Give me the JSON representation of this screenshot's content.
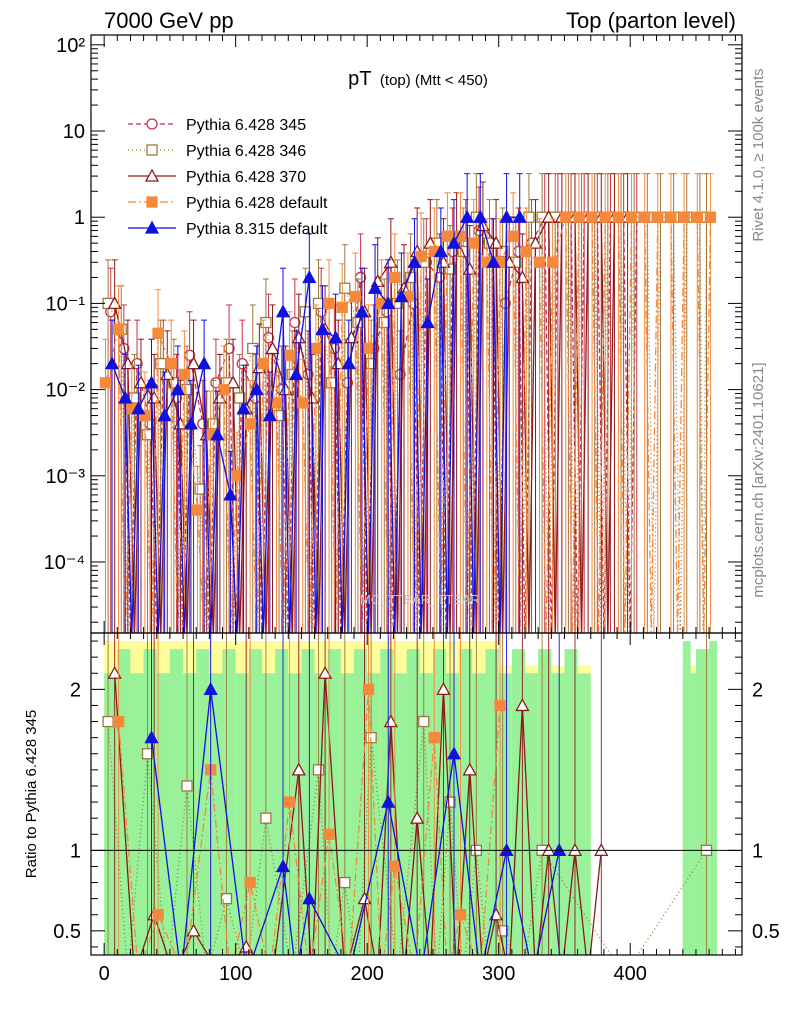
{
  "header": {
    "left": "7000 GeV pp",
    "right": "Top (parton level)"
  },
  "plot_title": {
    "main": "pT",
    "sub": "(top) (Mtt < 450)"
  },
  "side_labels": {
    "rivet": "Rivet 4.1.0, ≥ 100k events",
    "mcplots": "mcplots.cern.ch [arXiv:2401.10621]"
  },
  "watermark": "MC_TTBAR_TTBAR",
  "colors": {
    "band_green": "#99f199",
    "band_yellow": "#fdfd9a",
    "pythia6_345": "#c8324a",
    "pythia6_346": "#9a7a3a",
    "pythia6_370": "#8b1a1a",
    "pythia6_default": "#f5883a",
    "pythia8": "#1010e0"
  },
  "chart_data": [
    {
      "type": "line",
      "panel": "main",
      "yscale": "log",
      "xlim": [
        -10,
        485
      ],
      "ylim": [
        1.5e-05,
        130
      ],
      "x_ticks": [
        0,
        100,
        200,
        300,
        400
      ],
      "y_ticks": [
        {
          "value": 0.0001,
          "label": "10⁻⁴"
        },
        {
          "value": 0.001,
          "label": "10⁻³"
        },
        {
          "value": 0.01,
          "label": "10⁻²"
        },
        {
          "value": 0.1,
          "label": "10⁻¹"
        },
        {
          "value": 1,
          "label": "1"
        },
        {
          "value": 10,
          "label": "10"
        },
        {
          "value": 100,
          "label": "10²"
        }
      ],
      "series": [
        {
          "name": "Pythia 6.428 345",
          "color": "#c8324a",
          "dash": "5,3",
          "marker": "circle-open",
          "x": [
            5,
            15,
            25,
            35,
            45,
            55,
            65,
            75,
            85,
            95,
            105,
            115,
            125,
            135,
            145,
            155,
            165,
            175,
            185,
            195,
            205,
            215,
            225,
            235,
            245,
            255,
            265,
            275,
            285,
            295,
            305,
            315,
            325,
            335,
            345,
            355,
            365,
            375,
            385,
            395,
            405
          ],
          "y": [
            0.08,
            0.03,
            0.02,
            0.004,
            0.02,
            0.008,
            0.025,
            0.004,
            0.012,
            0.03,
            0.02,
            0.008,
            0.04,
            0.01,
            0.06,
            0.015,
            0.08,
            0.03,
            0.012,
            0.2,
            0.03,
            0.08,
            0.015,
            0.1,
            0.3,
            0.2,
            0.4,
            0.5,
            0.7,
            0.3,
            0.1,
            0.4,
            0.5,
            1.0,
            1.0,
            1.0,
            1.0,
            1.0,
            1.0,
            1.0,
            1.0
          ]
        },
        {
          "name": "Pythia 6.428 346",
          "color": "#9a7a3a",
          "dash": "1,3",
          "marker": "square-open",
          "x": [
            3,
            13,
            23,
            33,
            43,
            53,
            63,
            73,
            83,
            93,
            103,
            113,
            123,
            133,
            143,
            153,
            163,
            173,
            183,
            193,
            203,
            213,
            223,
            233,
            243,
            253,
            263,
            273,
            283,
            293,
            303,
            313,
            323,
            333,
            343,
            353,
            363,
            373,
            383,
            393,
            403,
            413,
            423,
            433,
            443,
            453,
            458
          ],
          "y": [
            0.1,
            0.05,
            0.008,
            0.003,
            0.02,
            0.012,
            0.01,
            0.0007,
            0.004,
            0.012,
            0.008,
            0.03,
            0.06,
            0.005,
            0.015,
            0.08,
            0.1,
            0.012,
            0.15,
            0.06,
            0.02,
            0.06,
            0.1,
            0.2,
            0.3,
            0.5,
            0.25,
            0.4,
            1.0,
            0.5,
            0.4,
            0.3,
            1.0,
            1.0,
            1.0,
            1.0,
            1.0,
            1.0,
            1.0,
            1.0,
            1.0,
            1.0,
            1.0,
            1.0,
            1.0,
            1.0,
            1.0
          ]
        },
        {
          "name": "Pythia 6.428 370",
          "color": "#8b1a1a",
          "dash": "",
          "marker": "triangle-open",
          "x": [
            8,
            18,
            28,
            38,
            48,
            58,
            68,
            78,
            88,
            98,
            108,
            118,
            128,
            138,
            148,
            158,
            168,
            178,
            188,
            198,
            208,
            218,
            228,
            238,
            248,
            258,
            268,
            278,
            288,
            298,
            308,
            318,
            328,
            338,
            348,
            358,
            368,
            378,
            388,
            398
          ],
          "y": [
            0.1,
            0.02,
            0.012,
            0.008,
            0.015,
            0.004,
            0.02,
            0.003,
            0.008,
            0.012,
            0.006,
            0.018,
            0.03,
            0.01,
            0.04,
            0.008,
            0.05,
            0.02,
            0.04,
            0.08,
            0.18,
            0.3,
            0.15,
            0.4,
            0.5,
            0.3,
            0.6,
            0.25,
            0.8,
            0.5,
            0.3,
            0.2,
            0.5,
            1.0,
            1.0,
            1.0,
            1.0,
            1.0,
            1.0,
            1.0
          ]
        },
        {
          "name": "Pythia 6.428 default",
          "color": "#f5883a",
          "dash": "8,3,2,3",
          "marker": "square-filled",
          "x": [
            1,
            11,
            21,
            31,
            41,
            51,
            61,
            71,
            81,
            91,
            101,
            111,
            121,
            131,
            141,
            151,
            161,
            171,
            181,
            191,
            201,
            211,
            221,
            231,
            241,
            251,
            261,
            271,
            281,
            291,
            301,
            311,
            321,
            331,
            341,
            351,
            361,
            371,
            381,
            391,
            401,
            411,
            421,
            431,
            441,
            451,
            461
          ],
          "y": [
            0.012,
            0.05,
            0.006,
            0.005,
            0.045,
            0.02,
            0.015,
            0.0004,
            0.003,
            0.01,
            0.001,
            0.004,
            0.02,
            0.007,
            0.025,
            0.007,
            0.03,
            0.1,
            0.09,
            0.12,
            0.03,
            0.1,
            0.2,
            0.12,
            0.35,
            0.4,
            0.6,
            0.6,
            0.5,
            0.3,
            0.3,
            0.6,
            0.4,
            0.3,
            0.3,
            1.0,
            1.0,
            1.0,
            1.0,
            1.0,
            1.0,
            1.0,
            1.0,
            1.0,
            1.0,
            1.0,
            1.0
          ]
        },
        {
          "name": "Pythia 8.315 default",
          "color": "#1010e0",
          "dash": "",
          "marker": "triangle-filled",
          "x": [
            6,
            16,
            26,
            36,
            46,
            56,
            66,
            76,
            86,
            96,
            106,
            116,
            126,
            136,
            146,
            156,
            166,
            176,
            186,
            196,
            206,
            216,
            226,
            236,
            246,
            256,
            266,
            276,
            286,
            296,
            306,
            316
          ],
          "y": [
            0.02,
            0.008,
            0.006,
            0.012,
            0.005,
            0.01,
            0.004,
            0.02,
            0.003,
            0.0006,
            0.006,
            0.01,
            0.005,
            0.08,
            0.015,
            0.2,
            0.05,
            0.04,
            0.02,
            0.08,
            0.15,
            0.1,
            0.12,
            0.3,
            0.06,
            0.4,
            0.5,
            1.0,
            1.0,
            0.3,
            1.0,
            1.0
          ]
        }
      ]
    },
    {
      "type": "line",
      "panel": "ratio",
      "ylabel": "Ratio to Pythia 6.428 345",
      "xlim": [
        -10,
        485
      ],
      "ylim": [
        0.35,
        2.35
      ],
      "x_ticks": [
        0,
        100,
        200,
        300,
        400
      ],
      "y_ticks": [
        0.5,
        1,
        2
      ],
      "reference_line": 1,
      "series": [
        {
          "name": "Pythia 6.428 346",
          "color": "#9a7a3a",
          "dash": "1,3",
          "marker": "square-open",
          "x": [
            3,
            33,
            63,
            93,
            123,
            163,
            183,
            203,
            243,
            263,
            283,
            303,
            333,
            458
          ],
          "y": [
            1.8,
            1.6,
            1.4,
            0.7,
            1.2,
            1.5,
            0.8,
            1.7,
            1.8,
            1.3,
            1.0,
            0.5,
            1.0,
            1.0
          ]
        },
        {
          "name": "Pythia 6.428 370",
          "color": "#8b1a1a",
          "dash": "",
          "marker": "triangle-open",
          "x": [
            8,
            38,
            68,
            108,
            148,
            168,
            198,
            218,
            238,
            258,
            278,
            298,
            318,
            338,
            358,
            378
          ],
          "y": [
            2.1,
            0.6,
            0.5,
            0.4,
            1.5,
            2.1,
            0.7,
            1.8,
            1.2,
            2.0,
            1.5,
            0.6,
            1.9,
            1.0,
            1.0,
            1.0
          ]
        },
        {
          "name": "Pythia 6.428 default",
          "color": "#f5883a",
          "dash": "8,3,2,3",
          "marker": "square-filled",
          "x": [
            11,
            41,
            81,
            111,
            141,
            171,
            201,
            221,
            251,
            271,
            301
          ],
          "y": [
            1.8,
            0.6,
            1.5,
            0.8,
            1.3,
            1.1,
            2.0,
            0.9,
            1.7,
            0.6,
            1.9
          ]
        },
        {
          "name": "Pythia 8.315 default",
          "color": "#1010e0",
          "dash": "",
          "marker": "triangle-filled",
          "x": [
            36,
            81,
            136,
            156,
            216,
            266,
            306,
            346
          ],
          "y": [
            1.7,
            2.0,
            0.9,
            0.7,
            1.3,
            1.6,
            1.0,
            1.0
          ]
        }
      ]
    }
  ]
}
